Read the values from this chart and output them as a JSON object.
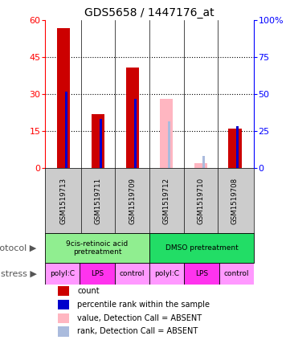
{
  "title": "GDS5658 / 1447176_at",
  "samples": [
    "GSM1519713",
    "GSM1519711",
    "GSM1519709",
    "GSM1519712",
    "GSM1519710",
    "GSM1519708"
  ],
  "count_values": [
    57,
    22,
    41,
    null,
    null,
    16
  ],
  "count_absent_values": [
    null,
    null,
    null,
    28,
    2,
    null
  ],
  "rank_values": [
    31,
    20,
    28,
    null,
    null,
    17
  ],
  "rank_absent_values": [
    null,
    null,
    null,
    19,
    5,
    null
  ],
  "left_ylim": [
    0,
    60
  ],
  "left_yticks": [
    0,
    15,
    30,
    45,
    60
  ],
  "right_yticks": [
    0,
    15,
    30,
    45,
    60
  ],
  "right_yticklabels": [
    "0",
    "25",
    "50",
    "75",
    "100%"
  ],
  "protocol_groups": [
    {
      "label": "9cis-retinoic acid\npretreatment",
      "span": [
        0,
        3
      ],
      "color": "#90EE90"
    },
    {
      "label": "DMSO pretreatment",
      "span": [
        3,
        6
      ],
      "color": "#22DD66"
    }
  ],
  "stress_labels": [
    "polyI:C",
    "LPS",
    "control",
    "polyI:C",
    "LPS",
    "control"
  ],
  "stress_colors": [
    "#FF99FF",
    "#FF33EE",
    "#FF99FF",
    "#FF99FF",
    "#FF33EE",
    "#FF99FF"
  ],
  "count_color": "#CC0000",
  "count_absent_color": "#FFB6C1",
  "rank_color": "#0000CC",
  "rank_absent_color": "#AABBDD",
  "background_color": "#FFFFFF",
  "sample_box_color": "#CCCCCC"
}
